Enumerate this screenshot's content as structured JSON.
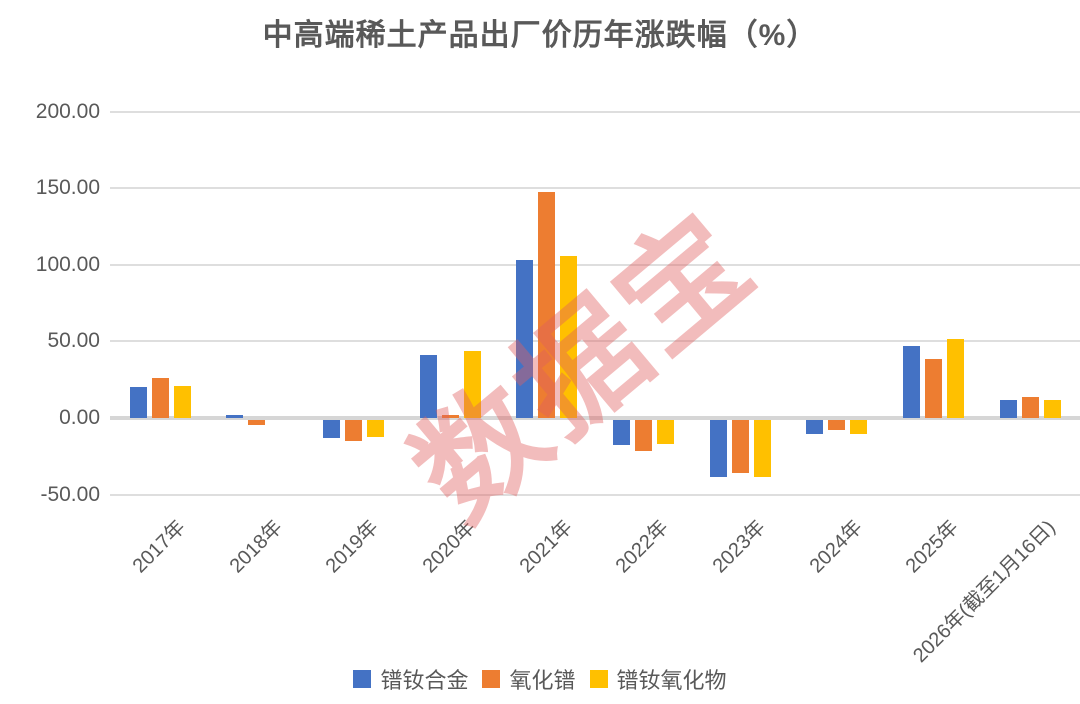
{
  "title": "中高端稀土产品出厂价历年涨跌幅（%）",
  "watermark": "数据宝",
  "chart_data": {
    "type": "bar",
    "title": "中高端稀土产品出厂价历年涨跌幅（%）",
    "xlabel": "",
    "ylabel": "",
    "ylim": [
      -50,
      200
    ],
    "grid": true,
    "legend_position": "bottom",
    "y_ticks": [
      {
        "label": "200.00",
        "value": 200
      },
      {
        "label": "150.00",
        "value": 150
      },
      {
        "label": "100.00",
        "value": 100
      },
      {
        "label": "50.00",
        "value": 50
      },
      {
        "label": "0.00",
        "value": 0
      },
      {
        "label": "-50.00",
        "value": -50
      }
    ],
    "categories": [
      "2017年",
      "2018年",
      "2019年",
      "2020年",
      "2021年",
      "2022年",
      "2023年",
      "2024年",
      "2025年",
      "2026年(截至1月16日)"
    ],
    "series": [
      {
        "name": "镨钕合金",
        "color": "#4472C4",
        "values": [
          20,
          2,
          -11.5,
          41,
          103,
          -16.5,
          -37,
          -9,
          47,
          11.5
        ]
      },
      {
        "name": "氧化镨",
        "color": "#ED7D31",
        "values": [
          26,
          -3,
          -14,
          2,
          147.5,
          -20.5,
          -34.5,
          -6.5,
          38.5,
          13.5
        ]
      },
      {
        "name": "镨钕氧化物",
        "color": "#FFC000",
        "values": [
          21,
          0,
          -11,
          44,
          105.5,
          -15.5,
          -37,
          -9,
          51.5,
          12
        ]
      }
    ]
  }
}
